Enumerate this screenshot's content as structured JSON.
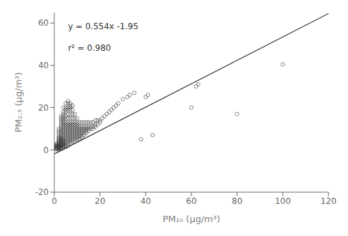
{
  "chart_data": {
    "type": "scatter",
    "xlabel": "PM₁₀ (μg/m³)",
    "ylabel": "PM₂.₅ (μg/m³)",
    "xlim": [
      0,
      120
    ],
    "ylim": [
      -20,
      65
    ],
    "xticks": [
      0,
      20,
      40,
      60,
      80,
      100,
      120
    ],
    "yticks": [
      -20,
      0,
      20,
      40,
      60
    ],
    "grid": false,
    "annotations": [
      "y = 0.554x -1.95",
      "r² = 0.980"
    ],
    "series": [
      {
        "type": "scatter",
        "color": "#333333",
        "marker": "circle",
        "x": [
          1,
          1,
          1,
          1,
          1,
          1,
          1,
          1,
          1,
          1,
          2,
          2,
          2,
          2,
          2,
          2,
          2,
          2,
          2,
          2,
          2,
          2,
          2,
          2,
          2,
          2,
          2,
          2,
          2,
          2,
          3,
          3,
          3,
          3,
          3,
          3,
          3,
          3,
          3,
          3,
          3,
          3,
          3,
          3,
          3,
          3,
          3,
          3,
          3,
          3,
          3,
          3,
          4,
          4,
          4,
          4,
          4,
          4,
          4,
          4,
          4,
          4,
          4,
          4,
          4,
          4,
          4,
          4,
          4,
          4,
          4,
          4,
          4,
          4,
          4,
          5,
          5,
          5,
          5,
          5,
          5,
          5,
          5,
          5,
          5,
          5,
          5,
          5,
          5,
          5,
          5,
          5,
          5,
          5,
          6,
          6,
          6,
          6,
          6,
          6,
          6,
          6,
          6,
          6,
          6,
          6,
          6,
          6,
          6,
          6,
          6,
          6,
          7,
          7,
          7,
          7,
          7,
          7,
          7,
          7,
          7,
          7,
          7,
          7,
          7,
          7,
          7,
          7,
          7,
          8,
          8,
          8,
          8,
          8,
          8,
          8,
          8,
          8,
          8,
          8,
          8,
          8,
          8,
          9,
          9,
          9,
          9,
          9,
          9,
          9,
          9,
          9,
          9,
          9,
          9,
          10,
          10,
          10,
          10,
          10,
          10,
          10,
          10,
          10,
          10,
          11,
          11,
          11,
          11,
          11,
          11,
          11,
          11,
          12,
          12,
          12,
          12,
          12,
          12,
          12,
          13,
          13,
          13,
          13,
          13,
          13,
          14,
          14,
          14,
          14,
          14,
          15,
          15,
          15,
          15,
          16,
          16,
          16,
          17,
          17,
          17,
          18,
          18,
          18,
          19,
          19,
          20,
          20,
          21,
          22,
          23,
          24,
          25,
          26,
          27,
          28,
          30,
          32,
          33,
          35,
          38,
          40,
          41,
          43,
          60,
          62,
          63,
          80,
          100
        ],
        "values": [
          0.3,
          0.5,
          0.7,
          1.0,
          1.2,
          1.5,
          1.8,
          2.0,
          2.5,
          3.0,
          0.3,
          0.5,
          0.7,
          1.0,
          1.2,
          1.5,
          1.8,
          2.0,
          2.5,
          3.0,
          3.5,
          4.0,
          4.5,
          5.0,
          5.5,
          6.0,
          7.0,
          8.0,
          9.0,
          10.0,
          0.5,
          1.0,
          1.5,
          2.0,
          2.5,
          3.0,
          3.5,
          4.0,
          4.5,
          5.0,
          5.5,
          6.0,
          7.0,
          8.0,
          9.0,
          10.0,
          11.0,
          12.0,
          13.0,
          14.0,
          15.0,
          16.0,
          1.0,
          1.5,
          2.0,
          2.5,
          3.0,
          3.5,
          4.0,
          4.5,
          5.0,
          6.0,
          7.0,
          8.0,
          9.0,
          10.0,
          11.0,
          12.0,
          13.0,
          14.0,
          15.0,
          16.0,
          17.0,
          18.0,
          20.0,
          1.5,
          2.0,
          3.0,
          4.0,
          5.0,
          6.0,
          7.0,
          8.0,
          9.0,
          10.0,
          11.0,
          12.0,
          13.0,
          15.0,
          16.0,
          18.0,
          19.0,
          20.0,
          22.0,
          2.0,
          3.0,
          4.0,
          5.0,
          6.0,
          7.0,
          8.0,
          9.0,
          10.0,
          11.0,
          12.0,
          13.0,
          15.0,
          17.0,
          19.0,
          20.0,
          22.0,
          23.0,
          3.0,
          4.0,
          5.0,
          6.0,
          7.0,
          8.0,
          9.0,
          10.0,
          11.0,
          12.0,
          13.0,
          15.0,
          17.0,
          19.0,
          20.0,
          21.0,
          22.0,
          4.0,
          5.0,
          6.0,
          7.0,
          8.0,
          9.0,
          10.0,
          11.0,
          12.0,
          13.0,
          15.0,
          17.0,
          19.0,
          21.0,
          4.0,
          5.0,
          6.0,
          7.0,
          8.0,
          9.0,
          10.0,
          11.0,
          12.0,
          13.0,
          15.0,
          17.0,
          5.0,
          6.0,
          7.0,
          8.0,
          9.0,
          10.0,
          11.0,
          12.0,
          13.0,
          15.0,
          5.0,
          6.0,
          7.0,
          8.0,
          9.0,
          10.0,
          11.0,
          13.0,
          6.0,
          7.0,
          8.0,
          9.0,
          10.0,
          11.0,
          13.0,
          7.0,
          8.0,
          9.0,
          10.0,
          11.0,
          13.0,
          8.0,
          9.0,
          10.0,
          11.0,
          13.0,
          9.0,
          10.0,
          11.0,
          13.0,
          10.0,
          11.0,
          13.0,
          10.0,
          11.0,
          13.0,
          11.0,
          12.0,
          14.0,
          12.0,
          14.0,
          13.0,
          14.0,
          15.0,
          16.0,
          17.0,
          18.0,
          19.0,
          20.0,
          21.0,
          22.0,
          24.0,
          25.0,
          26.0,
          27.0,
          5.0,
          25.0,
          26.0,
          7.0,
          20.0,
          30.0,
          31.0,
          17.0,
          40.5
        ]
      },
      {
        "type": "line",
        "color": "#222222",
        "x": [
          0,
          120
        ],
        "values": [
          -1.95,
          64.53
        ]
      }
    ]
  }
}
